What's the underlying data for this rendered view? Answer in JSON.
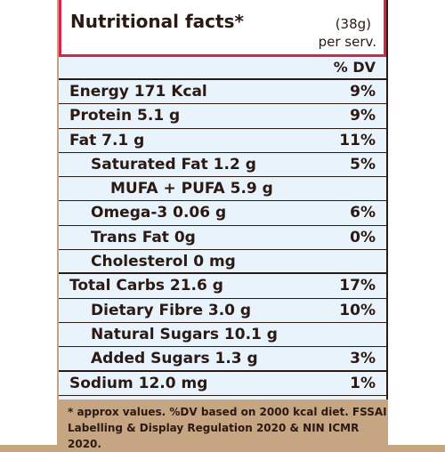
{
  "label": {
    "title": "Nutritional facts*",
    "serving_size": "(38g)",
    "serving_unit": "per serv.",
    "dv_header": "% DV",
    "rows": [
      {
        "name": "Energy 171 Kcal",
        "dv": "9%",
        "indent": 0,
        "major": false
      },
      {
        "name": "Protein 5.1 g",
        "dv": "9%",
        "indent": 0,
        "major": false
      },
      {
        "name": "Fat 7.1 g",
        "dv": "11%",
        "indent": 0,
        "major": false
      },
      {
        "name": "Saturated Fat 1.2 g",
        "dv": "5%",
        "indent": 1,
        "major": false
      },
      {
        "name": "MUFA + PUFA 5.9 g",
        "dv": "",
        "indent": 2,
        "major": false
      },
      {
        "name": "Omega-3 0.06 g",
        "dv": "6%",
        "indent": 1,
        "major": false
      },
      {
        "name": "Trans Fat 0g",
        "dv": "0%",
        "indent": 1,
        "major": false
      },
      {
        "name": "Cholesterol 0 mg",
        "dv": "",
        "indent": 1,
        "major": true
      },
      {
        "name": "Total Carbs 21.6 g",
        "dv": "17%",
        "indent": 0,
        "major": false
      },
      {
        "name": "Dietary Fibre 3.0 g",
        "dv": "10%",
        "indent": 1,
        "major": false
      },
      {
        "name": "Natural Sugars 10.1 g",
        "dv": "",
        "indent": 1,
        "major": false
      },
      {
        "name": "Added Sugars 1.3 g",
        "dv": "3%",
        "indent": 1,
        "major": true
      },
      {
        "name": "Sodium 12.0 mg",
        "dv": "1%",
        "indent": 0,
        "major": false
      }
    ],
    "footnote": "* approx values. %DV based on 2000 kcal diet. FSSAI Labelling & Display Regulation 2020 & NIN ICMR 2020."
  },
  "colors": {
    "header_border": "#d5254b",
    "panel_bg": "#e9f3fb",
    "packaging_bg": "#c6a582",
    "text": "#2b1a14"
  }
}
